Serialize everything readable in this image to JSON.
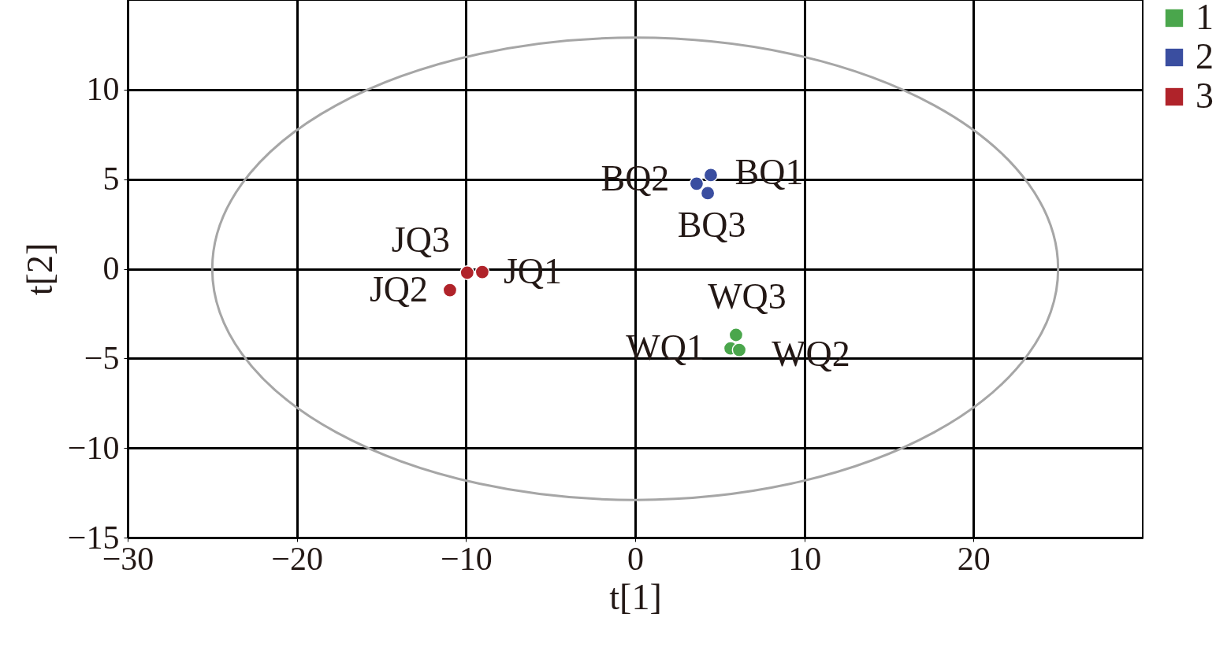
{
  "chart_data": {
    "type": "scatter",
    "xlabel": "t[1]",
    "ylabel": "t[2]",
    "xlim": [
      -30,
      30
    ],
    "ylim": [
      -15,
      15
    ],
    "xticks": [
      -30,
      -20,
      -10,
      0,
      10,
      20
    ],
    "yticks": [
      -15,
      -10,
      -5,
      0,
      5,
      10
    ],
    "grid": true,
    "legend": "top right",
    "marker": "circle",
    "series": [
      {
        "name": "1",
        "color": "#4aa64c",
        "x": [
          5.64,
          6.15,
          5.96
        ],
        "values": [
          -4.44,
          -4.53,
          -3.69
        ]
      },
      {
        "name": "2",
        "color": "#3a4ea0",
        "x": [
          4.47,
          3.63,
          4.29
        ],
        "values": [
          5.23,
          4.75,
          4.22
        ]
      },
      {
        "name": "3",
        "color": "#b0232a",
        "x": [
          -9.04,
          -10.95,
          -9.93
        ],
        "values": [
          -0.18,
          -1.19,
          -0.22
        ]
      }
    ],
    "annotations": [
      {
        "text": "WQ1",
        "x": 5.64,
        "y": -4.44
      },
      {
        "text": "WQ2",
        "x": 6.15,
        "y": -4.53
      },
      {
        "text": "WQ3",
        "x": 5.96,
        "y": -3.69
      },
      {
        "text": "BQ1",
        "x": 4.47,
        "y": 5.23
      },
      {
        "text": "BQ2",
        "x": 3.63,
        "y": 4.75
      },
      {
        "text": "BQ3",
        "x": 4.29,
        "y": 4.22
      },
      {
        "text": "JQ1",
        "x": -9.04,
        "y": -0.18
      },
      {
        "text": "JQ2",
        "x": -10.95,
        "y": -1.19
      },
      {
        "text": "JQ3",
        "x": -9.93,
        "y": -0.22
      }
    ]
  }
}
